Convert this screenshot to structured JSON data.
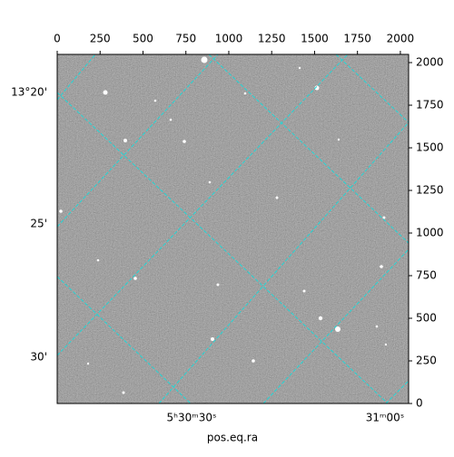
{
  "chart_data": {
    "type": "image",
    "xlabel": "pos.eq.ra",
    "xlim": [
      0,
      2048
    ],
    "ylim": [
      0,
      2048
    ],
    "xticks": [
      0,
      250,
      500,
      750,
      1000,
      1250,
      1500,
      1750,
      2000
    ],
    "yticks": [
      0,
      250,
      500,
      750,
      1000,
      1250,
      1500,
      1750,
      2000
    ],
    "dec_labels": [
      "13°20'",
      "25'",
      "30'"
    ],
    "ra_labels": [
      "5ʰ30ᵐ30ˢ",
      "31ᵐ00ˢ"
    ]
  }
}
